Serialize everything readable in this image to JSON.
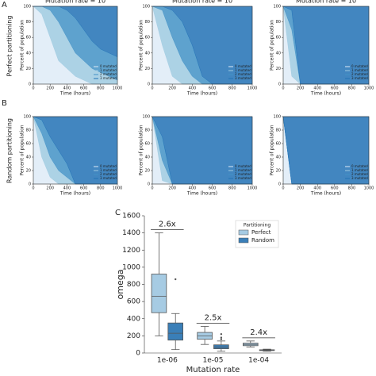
{
  "figure": {
    "panels": [
      "A",
      "B",
      "C"
    ],
    "row_labels": [
      "Perfect partitioning",
      "Random partitioning"
    ]
  },
  "chart_data": [
    {
      "type": "stack",
      "title": "Mutation rate = 10",
      "xlabel": "Time (hours)",
      "ylabel": "Percent of population",
      "x": [
        0,
        100,
        200,
        300,
        400,
        500,
        600,
        700,
        800,
        900,
        1000
      ],
      "xlim": [
        0,
        1000
      ],
      "xticks": [
        0,
        200,
        400,
        600,
        800,
        1000
      ],
      "ylim": [
        0,
        100
      ],
      "yticks": [
        0,
        20,
        40,
        60,
        80,
        100
      ],
      "legend": "lower right",
      "series": [
        {
          "name": "0 mutated",
          "color": "#deebf7",
          "values": [
            100,
            90,
            60,
            30,
            20,
            10,
            5,
            0,
            0,
            0,
            0
          ]
        },
        {
          "name": "1 mutated",
          "color": "#9ecae1",
          "values": [
            0,
            10,
            35,
            50,
            40,
            30,
            25,
            20,
            15,
            10,
            5
          ]
        },
        {
          "name": "2 mutated",
          "color": "#4292c6",
          "values": [
            0,
            0,
            5,
            20,
            35,
            45,
            40,
            35,
            30,
            30,
            30
          ]
        },
        {
          "name": "3 mutated",
          "color": "#2171b5",
          "values": [
            0,
            0,
            0,
            0,
            5,
            15,
            30,
            45,
            55,
            60,
            65
          ]
        }
      ]
    },
    {
      "type": "stack",
      "title": "Mutation rate = 10",
      "xlabel": "Time (hours)",
      "ylabel": "Percent of population",
      "x": [
        0,
        100,
        200,
        300,
        400,
        500,
        600,
        700,
        800,
        900,
        1000
      ],
      "xlim": [
        0,
        1000
      ],
      "xticks": [
        0,
        200,
        400,
        600,
        800,
        1000
      ],
      "ylim": [
        0,
        100
      ],
      "yticks": [
        0,
        20,
        40,
        60,
        80,
        100
      ],
      "legend": "lower right",
      "series": [
        {
          "name": "0 mutated",
          "color": "#deebf7",
          "values": [
            100,
            50,
            10,
            0,
            0,
            0,
            0,
            0,
            0,
            0,
            0
          ]
        },
        {
          "name": "1 mutated",
          "color": "#9ecae1",
          "values": [
            0,
            45,
            50,
            30,
            10,
            0,
            0,
            0,
            0,
            0,
            0
          ]
        },
        {
          "name": "2 mutated",
          "color": "#4292c6",
          "values": [
            0,
            5,
            35,
            50,
            40,
            10,
            0,
            0,
            0,
            0,
            0
          ]
        },
        {
          "name": "3 mutated",
          "color": "#2171b5",
          "values": [
            0,
            0,
            5,
            20,
            50,
            90,
            100,
            100,
            100,
            100,
            100
          ]
        }
      ]
    },
    {
      "type": "stack",
      "title": "Mutation rate = 10",
      "xlabel": "Time (hours)",
      "ylabel": "Percent of population",
      "x": [
        0,
        100,
        200,
        300,
        400,
        500,
        600,
        700,
        800,
        900,
        1000
      ],
      "xlim": [
        0,
        1000
      ],
      "xticks": [
        0,
        200,
        400,
        600,
        800,
        1000
      ],
      "ylim": [
        0,
        100
      ],
      "yticks": [
        0,
        20,
        40,
        60,
        80,
        100
      ],
      "legend": "lower right",
      "series": [
        {
          "name": "0 mutated",
          "color": "#deebf7",
          "values": [
            100,
            10,
            0,
            0,
            0,
            0,
            0,
            0,
            0,
            0,
            0
          ]
        },
        {
          "name": "1 mutated",
          "color": "#9ecae1",
          "values": [
            0,
            60,
            0,
            0,
            0,
            0,
            0,
            0,
            0,
            0,
            0
          ]
        },
        {
          "name": "2 mutated",
          "color": "#4292c6",
          "values": [
            0,
            25,
            0,
            0,
            0,
            0,
            0,
            0,
            0,
            0,
            0
          ]
        },
        {
          "name": "3 mutated",
          "color": "#2171b5",
          "values": [
            0,
            5,
            100,
            100,
            100,
            100,
            100,
            100,
            100,
            100,
            100
          ]
        }
      ]
    },
    {
      "type": "stack",
      "xlabel": "Time (hours)",
      "ylabel": "Percent of population",
      "x": [
        0,
        100,
        200,
        300,
        400,
        500,
        600,
        700,
        800,
        900,
        1000
      ],
      "xlim": [
        0,
        1000
      ],
      "xticks": [
        0,
        200,
        400,
        600,
        800,
        1000
      ],
      "ylim": [
        0,
        100
      ],
      "yticks": [
        0,
        20,
        40,
        60,
        80,
        100
      ],
      "legend": "lower right",
      "series": [
        {
          "name": "0 mutated",
          "color": "#deebf7",
          "values": [
            100,
            40,
            10,
            0,
            0,
            0,
            0,
            0,
            0,
            0,
            0
          ]
        },
        {
          "name": "1 mutated",
          "color": "#9ecae1",
          "values": [
            0,
            35,
            30,
            20,
            10,
            0,
            0,
            0,
            0,
            0,
            0
          ]
        },
        {
          "name": "2 mutated",
          "color": "#4292c6",
          "values": [
            0,
            20,
            30,
            30,
            20,
            0,
            0,
            0,
            0,
            0,
            0
          ]
        },
        {
          "name": "3 mutated",
          "color": "#2171b5",
          "values": [
            0,
            5,
            30,
            50,
            70,
            100,
            100,
            100,
            100,
            100,
            100
          ]
        }
      ]
    },
    {
      "type": "stack",
      "xlabel": "Time (hours)",
      "ylabel": "Percent of population",
      "x": [
        0,
        100,
        200,
        300,
        400,
        500,
        600,
        700,
        800,
        900,
        1000
      ],
      "xlim": [
        0,
        1000
      ],
      "xticks": [
        0,
        200,
        400,
        600,
        800,
        1000
      ],
      "ylim": [
        0,
        100
      ],
      "yticks": [
        0,
        20,
        40,
        60,
        80,
        100
      ],
      "legend": "lower right",
      "series": [
        {
          "name": "0 mutated",
          "color": "#deebf7",
          "values": [
            100,
            5,
            0,
            0,
            0,
            0,
            0,
            0,
            0,
            0,
            0
          ]
        },
        {
          "name": "1 mutated",
          "color": "#9ecae1",
          "values": [
            0,
            30,
            0,
            0,
            0,
            0,
            0,
            0,
            0,
            0,
            0
          ]
        },
        {
          "name": "2 mutated",
          "color": "#4292c6",
          "values": [
            0,
            35,
            0,
            0,
            0,
            0,
            0,
            0,
            0,
            0,
            0
          ]
        },
        {
          "name": "3 mutated",
          "color": "#2171b5",
          "values": [
            0,
            30,
            100,
            100,
            100,
            100,
            100,
            100,
            100,
            100,
            100
          ]
        }
      ]
    },
    {
      "type": "stack",
      "xlabel": "Time (hours)",
      "ylabel": "Percent of population",
      "x": [
        0,
        100,
        200,
        300,
        400,
        500,
        600,
        700,
        800,
        900,
        1000
      ],
      "xlim": [
        0,
        1000
      ],
      "xticks": [
        0,
        200,
        400,
        600,
        800,
        1000
      ],
      "ylim": [
        0,
        100
      ],
      "yticks": [
        0,
        20,
        40,
        60,
        80,
        100
      ],
      "legend": "lower right",
      "series": [
        {
          "name": "0 mutated",
          "color": "#deebf7",
          "values": [
            100,
            0,
            0,
            0,
            0,
            0,
            0,
            0,
            0,
            0,
            0
          ]
        },
        {
          "name": "1 mutated",
          "color": "#9ecae1",
          "values": [
            0,
            0,
            0,
            0,
            0,
            0,
            0,
            0,
            0,
            0,
            0
          ]
        },
        {
          "name": "2 mutated",
          "color": "#4292c6",
          "values": [
            0,
            0,
            0,
            0,
            0,
            0,
            0,
            0,
            0,
            0,
            0
          ]
        },
        {
          "name": "3 mutated",
          "color": "#2171b5",
          "values": [
            0,
            100,
            100,
            100,
            100,
            100,
            100,
            100,
            100,
            100,
            100
          ]
        }
      ]
    },
    {
      "type": "box",
      "xlabel": "Mutation rate",
      "ylabel": "omega",
      "categories": [
        "1e-06",
        "1e-05",
        "1e-04"
      ],
      "ylim": [
        0,
        1600
      ],
      "yticks": [
        0,
        200,
        400,
        600,
        800,
        1000,
        1200,
        1400,
        1600
      ],
      "legend": "upper right",
      "legend_title": "Partitioning",
      "series": [
        {
          "name": "Perfect",
          "color": "#a6cbe3",
          "stats": [
            {
              "whislo": 200,
              "q1": 470,
              "med": 660,
              "q3": 920,
              "whishi": 1400,
              "fliers": []
            },
            {
              "whislo": 100,
              "q1": 160,
              "med": 200,
              "q3": 240,
              "whishi": 310,
              "fliers": []
            },
            {
              "whislo": 70,
              "q1": 85,
              "med": 100,
              "q3": 115,
              "whishi": 140,
              "fliers": []
            }
          ]
        },
        {
          "name": "Random",
          "color": "#3a7fb8",
          "stats": [
            {
              "whislo": 40,
              "q1": 150,
              "med": 230,
              "q3": 350,
              "whishi": 460,
              "fliers": [
                860
              ]
            },
            {
              "whislo": 20,
              "q1": 50,
              "med": 70,
              "q3": 95,
              "whishi": 140,
              "fliers": [
                160,
                180,
                220
              ]
            },
            {
              "whislo": 20,
              "q1": 28,
              "med": 32,
              "q3": 38,
              "whishi": 45,
              "fliers": []
            }
          ]
        }
      ],
      "annotations": [
        "2.6x",
        "2.5x",
        "2.4x"
      ]
    }
  ]
}
